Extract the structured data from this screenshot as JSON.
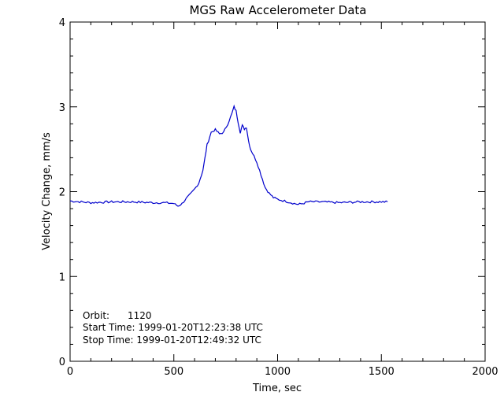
{
  "chart_data": {
    "type": "line",
    "title": "MGS Raw Accelerometer Data",
    "xlabel": "Time, sec",
    "ylabel": "Velocity Change, mm/s",
    "xlim": [
      0,
      2000
    ],
    "ylim": [
      0,
      4
    ],
    "x_ticks": [
      0,
      500,
      1000,
      1500,
      2000
    ],
    "y_ticks": [
      0,
      1,
      2,
      3,
      4
    ],
    "grid": false,
    "line_color": "#0000cc",
    "series": [
      {
        "x": [
          0,
          100,
          200,
          300,
          400,
          450,
          500,
          520,
          540,
          560,
          580,
          600,
          620,
          640,
          650,
          660,
          680,
          700,
          720,
          740,
          760,
          780,
          790,
          800,
          810,
          820,
          830,
          840,
          850,
          860,
          870,
          880,
          900,
          920,
          940,
          960,
          980,
          1000,
          1050,
          1080,
          1100,
          1120,
          1150,
          1200,
          1300,
          1400,
          1500,
          1530
        ],
        "y": [
          1.89,
          1.87,
          1.88,
          1.88,
          1.87,
          1.87,
          1.86,
          1.83,
          1.86,
          1.92,
          1.97,
          2.03,
          2.1,
          2.25,
          2.4,
          2.55,
          2.7,
          2.73,
          2.68,
          2.7,
          2.8,
          2.92,
          3.0,
          2.95,
          2.82,
          2.7,
          2.78,
          2.74,
          2.76,
          2.6,
          2.5,
          2.45,
          2.35,
          2.2,
          2.05,
          1.98,
          1.93,
          1.91,
          1.88,
          1.86,
          1.85,
          1.86,
          1.88,
          1.88,
          1.87,
          1.88,
          1.88,
          1.88
        ]
      }
    ],
    "annotations": [
      "Orbit:      1120",
      "Start Time: 1999-01-20T12:23:38 UTC",
      "Stop Time: 1999-01-20T12:49:32 UTC"
    ]
  }
}
